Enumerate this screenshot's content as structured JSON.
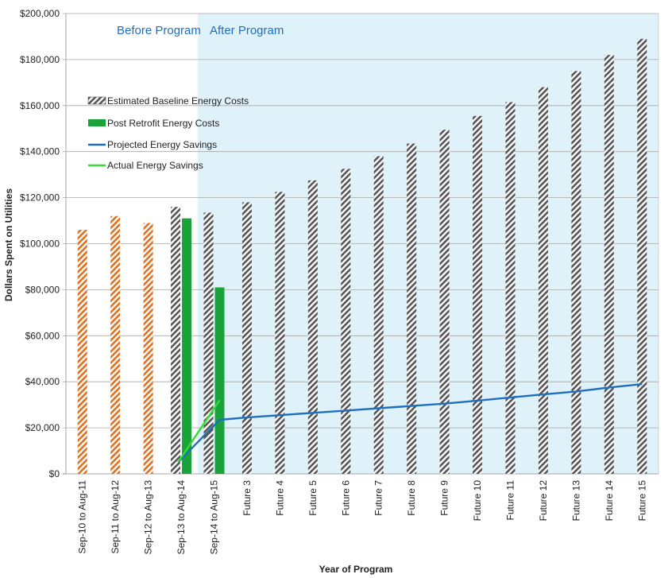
{
  "chart_data": {
    "type": "bar",
    "xlabel": "Year of Program",
    "ylabel": "Dollars Spent on Utilities",
    "ylim": [
      0,
      200000
    ],
    "yticks": [
      "$0",
      "$20,000",
      "$40,000",
      "$60,000",
      "$80,000",
      "$100,000",
      "$120,000",
      "$140,000",
      "$160,000",
      "$180,000",
      "$200,000"
    ],
    "grid": true,
    "legend_position": "top-left",
    "categories": [
      "Sep-10 to Aug-11",
      "Sep-11 to Aug-12",
      "Sep-12 to Aug-13",
      "Sep-13 to Aug-14",
      "Sep-14 to Aug-15",
      "Future 3",
      "Future 4",
      "Future 5",
      "Future 6",
      "Future 7",
      "Future 8",
      "Future 9",
      "Future 10",
      "Future 11",
      "Future 12",
      "Future 13",
      "Future 14",
      "Future 15"
    ],
    "regions": [
      {
        "label": "Before Program",
        "from_category": 0,
        "to_category": 3,
        "color": "#ffffff"
      },
      {
        "label": "After Program",
        "from_category": 4,
        "to_category": 17,
        "color": "#dff1f9"
      }
    ],
    "series": [
      {
        "name": "Estimated Baseline Energy Costs",
        "kind": "bar",
        "pattern": "hatched",
        "colors": {
          "before": "#e07020",
          "after": "#555555"
        },
        "values": [
          106000,
          112000,
          109000,
          116000,
          113500,
          118000,
          122500,
          127500,
          132500,
          138000,
          143500,
          149500,
          155500,
          161500,
          168000,
          175000,
          182000,
          189000
        ]
      },
      {
        "name": "Post Retrofit Energy Costs",
        "kind": "bar",
        "color": "#1aa33a",
        "values": [
          null,
          null,
          null,
          111000,
          81000,
          null,
          null,
          null,
          null,
          null,
          null,
          null,
          null,
          null,
          null,
          null,
          null,
          null
        ]
      },
      {
        "name": "Projected Energy Savings",
        "kind": "line",
        "color": "#1f6fc0",
        "values": [
          null,
          null,
          null,
          5000,
          23500,
          24500,
          25500,
          26500,
          27500,
          28500,
          29500,
          30500,
          31800,
          33200,
          34500,
          35800,
          37500,
          39000
        ]
      },
      {
        "name": "Actual Energy Savings",
        "kind": "line",
        "color": "#33dd33",
        "values": [
          null,
          null,
          null,
          5000,
          32000,
          null,
          null,
          null,
          null,
          null,
          null,
          null,
          null,
          null,
          null,
          null,
          null,
          null
        ]
      }
    ]
  }
}
